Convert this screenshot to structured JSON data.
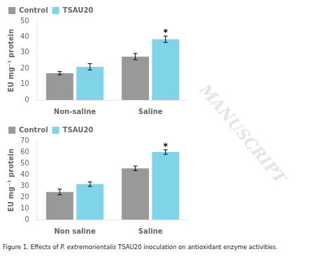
{
  "chart_data": [
    {
      "type": "bar",
      "categories": [
        "Non-saline",
        "Saline"
      ],
      "series": [
        {
          "name": "Control",
          "color": "#999999",
          "values": [
            17,
            27.5
          ],
          "errors": [
            1.0,
            2.0
          ]
        },
        {
          "name": "TSAU20",
          "color": "#7fd4e8",
          "values": [
            21,
            38.5
          ],
          "errors": [
            2.0,
            2.0
          ]
        }
      ],
      "ylabel": "EU mg⁻¹ protein",
      "ylim": [
        0,
        50
      ],
      "yticks": [
        0,
        10,
        20,
        30,
        40,
        50
      ],
      "annotations": [
        {
          "category": "Saline",
          "series": "TSAU20",
          "text": "*"
        }
      ],
      "legend": "upper left",
      "grid": false
    },
    {
      "type": "bar",
      "categories": [
        "Non saline",
        "Saline"
      ],
      "series": [
        {
          "name": "Control",
          "color": "#999999",
          "values": [
            24.5,
            45.5
          ],
          "errors": [
            2.5,
            2.0
          ]
        },
        {
          "name": "TSAU20",
          "color": "#7fd4e8",
          "values": [
            31.5,
            60
          ],
          "errors": [
            2.0,
            2.0
          ]
        }
      ],
      "ylabel": "EU mg⁻¹ protein",
      "ylim": [
        0,
        70
      ],
      "yticks": [
        0,
        10,
        20,
        30,
        40,
        50,
        60,
        70
      ],
      "annotations": [
        {
          "category": "Saline",
          "series": "TSAU20",
          "text": "*"
        }
      ],
      "legend": "upper left",
      "grid": false
    }
  ],
  "caption": [
    "Figure 1. Effects of ",
    "P. extremorientalis",
    " TSAU20 inoculation on antioxidant enzyme activities."
  ],
  "watermark": {
    "text": "MANUSCRIPT",
    "color": "#cccccc"
  }
}
